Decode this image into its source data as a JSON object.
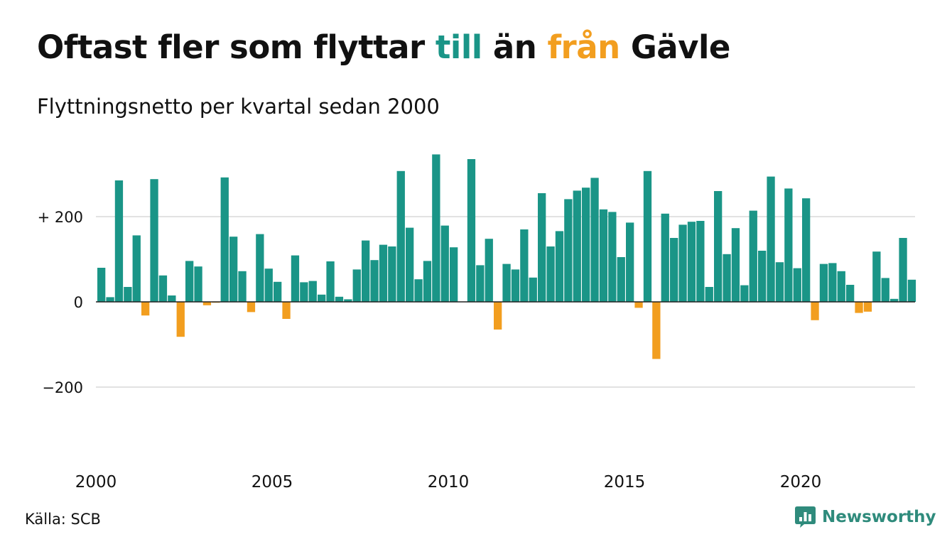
{
  "title": {
    "pre": "Oftast fler som flyttar",
    "highlight_pos": "till",
    "mid": "än",
    "highlight_neg": "från",
    "post": "Gävle"
  },
  "subtitle": "Flyttningsnetto per kvartal sedan 2000",
  "source": "Källa: SCB",
  "brand": {
    "name": "Newsworthy",
    "icon": "newsworthy-chart-bubble-icon"
  },
  "colors": {
    "positive": "#1a9587",
    "negative": "#f29e1f",
    "grid": "#e2e2e2",
    "text": "#111111",
    "brand": "#2f8b7c"
  },
  "chart_data": {
    "type": "bar",
    "title": "Oftast fler som flyttar till än från Gävle",
    "subtitle": "Flyttningsnetto per kvartal sedan 2000",
    "x_start": "2000-Q1",
    "x_ticks": [
      "2000",
      "2005",
      "2010",
      "2015",
      "2020"
    ],
    "y_ticks": [
      {
        "value": 200,
        "label": "+ 200"
      },
      {
        "value": 0,
        "label": "0"
      },
      {
        "value": -200,
        "label": "−200"
      }
    ],
    "ylim": [
      -340,
      350
    ],
    "grid": true,
    "values": [
      80,
      11,
      285,
      35,
      156,
      -32,
      288,
      62,
      15,
      -82,
      96,
      83,
      -8,
      -2,
      292,
      153,
      72,
      -24,
      159,
      78,
      47,
      -40,
      109,
      46,
      49,
      17,
      95,
      12,
      6,
      76,
      144,
      98,
      134,
      130,
      307,
      174,
      53,
      96,
      346,
      179,
      128,
      0,
      335,
      86,
      148,
      -65,
      89,
      76,
      170,
      57,
      255,
      130,
      166,
      241,
      261,
      268,
      291,
      217,
      211,
      105,
      186,
      -14,
      307,
      -134,
      207,
      150,
      181,
      188,
      190,
      35,
      260,
      112,
      173,
      39,
      214,
      120,
      294,
      93,
      266,
      79,
      243,
      -43,
      89,
      91,
      72,
      40,
      -26,
      -23,
      118,
      56,
      7,
      150,
      52
    ]
  }
}
